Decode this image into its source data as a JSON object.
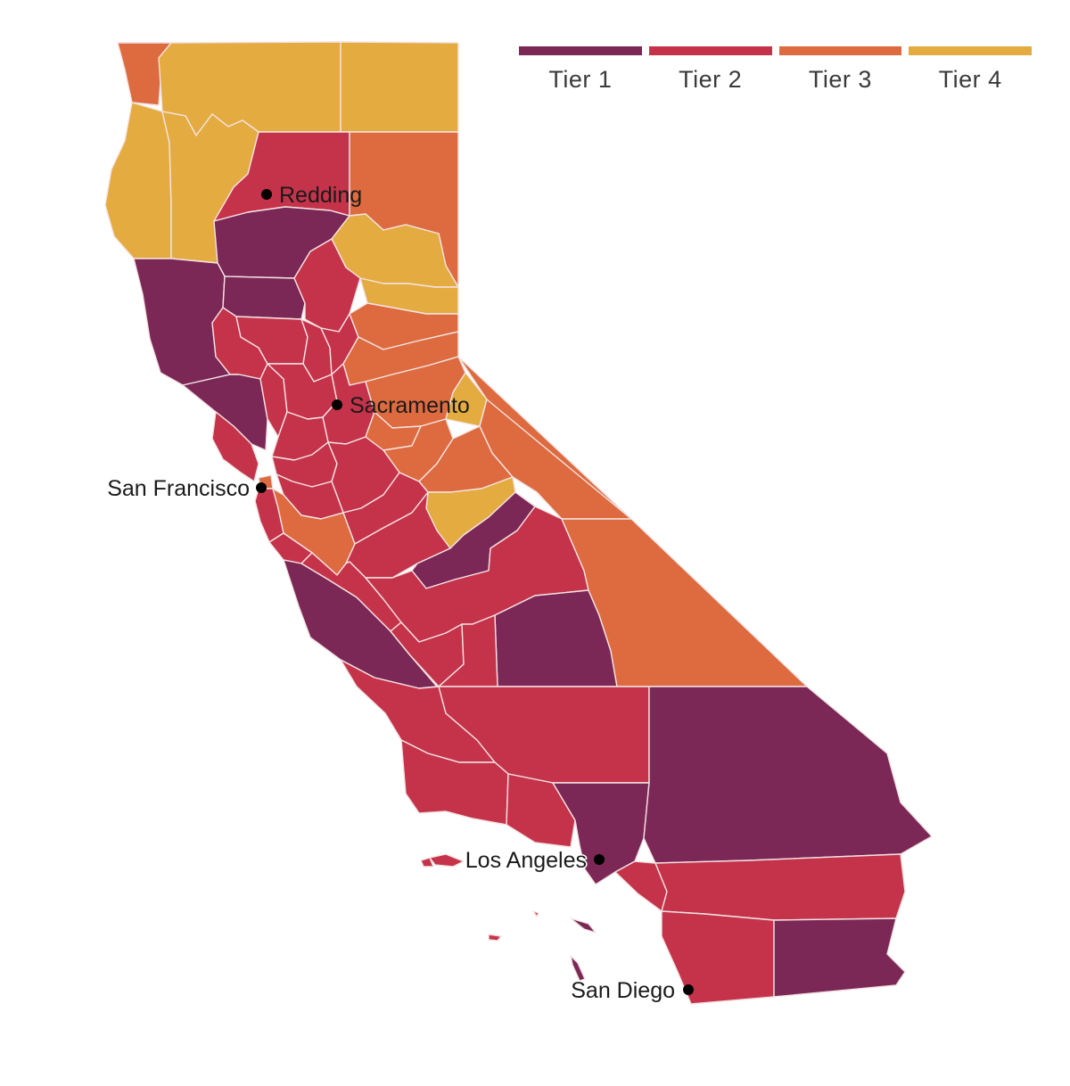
{
  "colors": {
    "tier1": "#7b2857",
    "tier2": "#c5334a",
    "tier3": "#dd6b3f",
    "tier4": "#e4ab40"
  },
  "legend": {
    "items": [
      {
        "label": "Tier 1",
        "color": "#7b2857"
      },
      {
        "label": "Tier 2",
        "color": "#c5334a"
      },
      {
        "label": "Tier 3",
        "color": "#dd6b3f"
      },
      {
        "label": "Tier 4",
        "color": "#e4ab40"
      }
    ]
  },
  "cities": {
    "redding": "Redding",
    "sacramento": "Sacramento",
    "san_francisco": "San Francisco",
    "los_angeles": "Los Angeles",
    "san_diego": "San Diego"
  }
}
